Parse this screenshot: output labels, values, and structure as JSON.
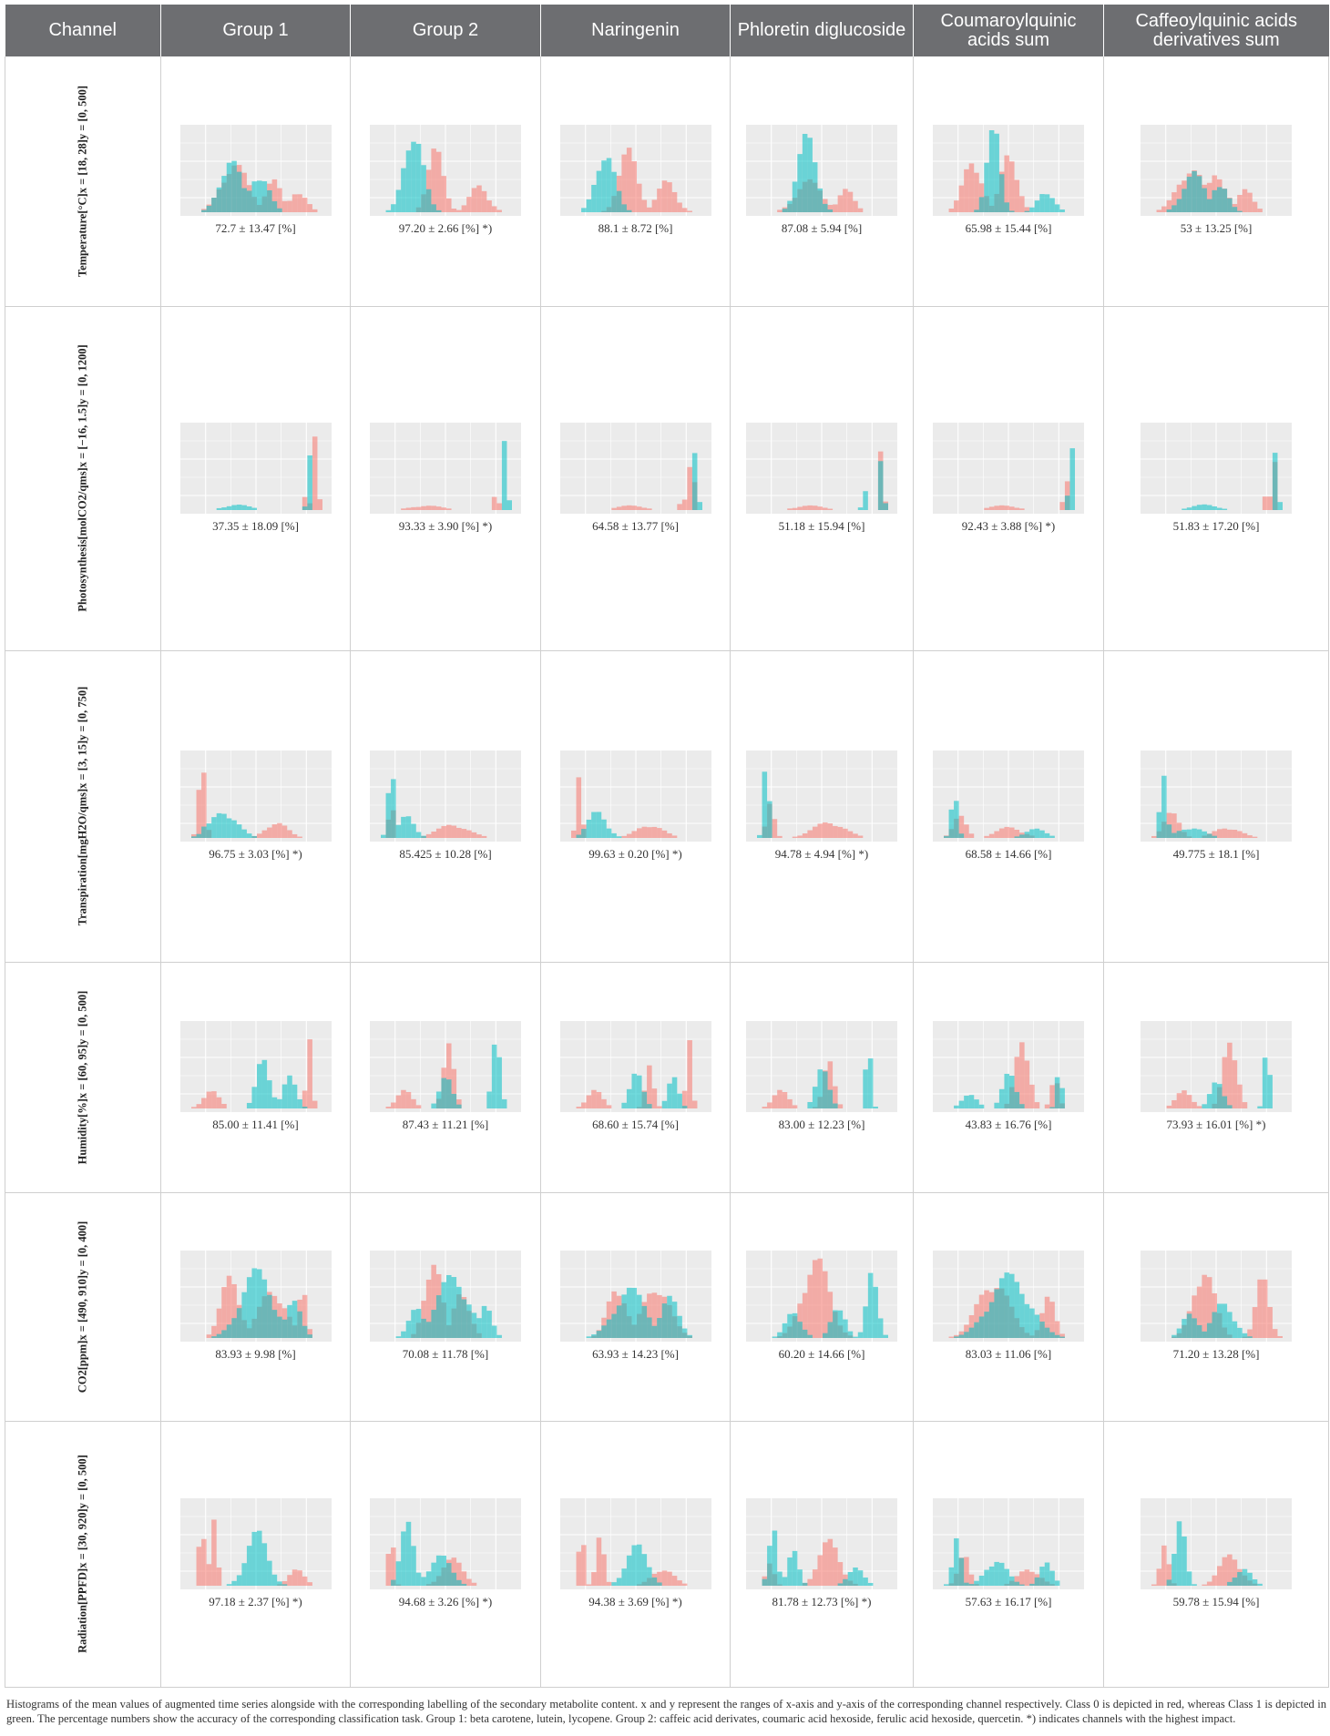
{
  "table": {
    "headers": [
      "Channel",
      "Group 1",
      "Group 2",
      "Naringenin",
      "Phloretin diglucoside",
      "Coumaroylquinic acids sum",
      "Caffeoylquinic acids derivatives sum"
    ],
    "rows": [
      {
        "channel": "Temperature[°C]x = [18, 28]y = [0, 500]",
        "accuracies": [
          "72.7 ± 13.47 [%]",
          "97.20 ± 2.66 [%] *)",
          "88.1 ± 8.72 [%]",
          "87.08 ± 5.94 [%]",
          "65.98 ± 15.44 [%]",
          "53 ± 13.25 [%]"
        ]
      },
      {
        "channel": "Photosynthesis[molCO2/qms]x = [−16, 1.5]y = [0, 1200]",
        "accuracies": [
          "37.35 ± 18.09 [%]",
          "93.33 ± 3.90 [%] *)",
          "64.58 ± 13.77 [%]",
          "51.18 ± 15.94 [%]",
          "92.43 ± 3.88 [%] *)",
          "51.83 ± 17.20 [%]"
        ]
      },
      {
        "channel": "Transpiration[mgH2O/qms]x = [3, 15]y = [0, 750]",
        "accuracies": [
          "96.75 ± 3.03 [%] *)",
          "85.425 ± 10.28 [%]",
          "99.63 ± 0.20 [%] *)",
          "94.78 ± 4.94 [%] *)",
          "68.58 ± 14.66 [%]",
          "49.775 ± 18.1 [%]"
        ]
      },
      {
        "channel": "Humidity[%]x = [60, 95]y = [0, 500]",
        "accuracies": [
          "85.00 ± 11.41 [%]",
          "87.43 ± 11.21 [%]",
          "68.60 ± 15.74 [%]",
          "83.00 ± 12.23 [%]",
          "43.83 ± 16.76 [%]",
          "73.93 ± 16.01 [%] *)"
        ]
      },
      {
        "channel": "CO2[ppm]x = [490, 910]y = [0, 400]",
        "accuracies": [
          "83.93 ± 9.98 [%]",
          "70.08 ± 11.78 [%]",
          "63.93 ± 14.23 [%]",
          "60.20 ± 14.66 [%]",
          "83.03 ± 11.06 [%]",
          "71.20 ± 13.28 [%]"
        ]
      },
      {
        "channel": "Radiation[PPFD]x = [30, 920]y = [0, 500]",
        "accuracies": [
          "97.18 ± 2.37 [%] *)",
          "94.68 ± 3.26 [%] *)",
          "94.38 ± 3.69 [%] *)",
          "81.78 ± 12.73 [%] *)",
          "57.63 ± 16.17 [%]",
          "59.78 ± 15.94 [%]"
        ]
      }
    ]
  },
  "caption": "Histograms of the mean values of augmented time series alongside with the corresponding labelling of the secondary metabolite content. x and y represent the ranges of x-axis and y-axis of the corresponding channel respectively. Class 0 is depicted in red, whereas Class 1 is depicted in green. The percentage numbers show the accuracy of the corresponding classification task. Group 1: beta carotene, lutein, lycopene. Group 2: caffeic acid derivates, coumaric acid hexoside, ferulic acid hexoside, quercetin. *) indicates channels with the highest impact.",
  "colors": {
    "header_bg": "#6d6e71",
    "class0_red": "#f8766d",
    "class1_green": "#00bfc4",
    "plot_panel": "#ebebeb"
  },
  "chart_data": {
    "type": "histogram-grid",
    "classes": [
      "Class 0",
      "Class 1"
    ],
    "shapes": [
      [
        [
          [
            [
              0.33,
              0.1,
              0.55
            ],
            [
              0.62,
              0.06,
              0.38
            ],
            [
              0.82,
              0.06,
              0.25
            ]
          ],
          [
            [
              0.3,
              0.08,
              0.6
            ],
            [
              0.52,
              0.07,
              0.45
            ]
          ]
        ],
        [
          [
            [
              0.42,
              0.06,
              0.7
            ],
            [
              0.75,
              0.07,
              0.3
            ]
          ],
          [
            [
              0.25,
              0.07,
              0.95
            ]
          ]
        ],
        [
          [
            [
              0.44,
              0.07,
              0.7
            ],
            [
              0.73,
              0.07,
              0.35
            ]
          ],
          [
            [
              0.26,
              0.07,
              0.7
            ]
          ]
        ],
        [
          [
            [
              0.4,
              0.1,
              0.35
            ],
            [
              0.68,
              0.06,
              0.25
            ]
          ],
          [
            [
              0.38,
              0.07,
              0.85
            ]
          ]
        ],
        [
          [
            [
              0.22,
              0.07,
              0.6
            ],
            [
              0.5,
              0.06,
              0.7
            ]
          ],
          [
            [
              0.38,
              0.05,
              0.95
            ],
            [
              0.78,
              0.06,
              0.25
            ]
          ]
        ],
        [
          [
            [
              0.3,
              0.1,
              0.5
            ],
            [
              0.5,
              0.07,
              0.45
            ],
            [
              0.72,
              0.06,
              0.25
            ]
          ],
          [
            [
              0.32,
              0.08,
              0.45
            ],
            [
              0.52,
              0.06,
              0.35
            ]
          ]
        ]
      ],
      [
        [
          [
            [
              0.95,
              0.015,
              0.95
            ],
            [
              0.88,
              0.015,
              0.3
            ]
          ],
          [
            [
              0.9,
              0.015,
              0.65
            ],
            [
              0.35,
              0.1,
              0.06
            ]
          ]
        ],
        [
          [
            [
              0.35,
              0.12,
              0.05
            ],
            [
              0.88,
              0.015,
              0.3
            ]
          ],
          [
            [
              0.95,
              0.015,
              0.85
            ]
          ]
        ],
        [
          [
            [
              0.45,
              0.11,
              0.05
            ],
            [
              0.92,
              0.015,
              0.95
            ],
            [
              0.85,
              0.015,
              0.25
            ]
          ],
          [
            [
              0.95,
              0.015,
              0.7
            ]
          ]
        ],
        [
          [
            [
              0.4,
              0.11,
              0.05
            ],
            [
              0.95,
              0.015,
              0.75
            ]
          ],
          [
            [
              0.95,
              0.015,
              0.6
            ],
            [
              0.82,
              0.015,
              0.3
            ]
          ]
        ],
        [
          [
            [
              0.45,
              0.11,
              0.05
            ],
            [
              0.93,
              0.015,
              0.45
            ]
          ],
          [
            [
              0.97,
              0.015,
              0.85
            ]
          ]
        ],
        [
          [
            [
              0.93,
              0.015,
              0.75
            ],
            [
              0.88,
              0.015,
              0.3
            ]
          ],
          [
            [
              0.4,
              0.1,
              0.06
            ],
            [
              0.95,
              0.015,
              0.7
            ]
          ]
        ]
      ],
      [
        [
          [
            [
              0.08,
              0.025,
              0.95
            ],
            [
              0.65,
              0.08,
              0.18
            ]
          ],
          [
            [
              0.25,
              0.1,
              0.3
            ],
            [
              0.12,
              0.04,
              0.15
            ]
          ]
        ],
        [
          [
            [
              0.08,
              0.02,
              0.45
            ],
            [
              0.55,
              0.12,
              0.15
            ]
          ],
          [
            [
              0.08,
              0.025,
              0.8
            ],
            [
              0.2,
              0.06,
              0.25
            ]
          ]
        ],
        [
          [
            [
              0.06,
              0.02,
              0.8
            ],
            [
              0.6,
              0.1,
              0.15
            ]
          ],
          [
            [
              0.2,
              0.07,
              0.3
            ]
          ]
        ],
        [
          [
            [
              0.1,
              0.03,
              0.4
            ],
            [
              0.55,
              0.12,
              0.18
            ]
          ],
          [
            [
              0.07,
              0.02,
              0.95
            ]
          ]
        ],
        [
          [
            [
              0.12,
              0.05,
              0.25
            ],
            [
              0.5,
              0.1,
              0.12
            ]
          ],
          [
            [
              0.08,
              0.025,
              0.5
            ],
            [
              0.7,
              0.08,
              0.1
            ]
          ]
        ],
        [
          [
            [
              0.15,
              0.06,
              0.28
            ],
            [
              0.58,
              0.1,
              0.12
            ]
          ],
          [
            [
              0.09,
              0.025,
              0.7
            ],
            [
              0.3,
              0.1,
              0.12
            ]
          ]
        ]
      ],
      [
        [
          [
            [
              0.15,
              0.06,
              0.2
            ],
            [
              0.9,
              0.02,
              0.95
            ]
          ],
          [
            [
              0.55,
              0.05,
              0.6
            ],
            [
              0.75,
              0.05,
              0.35
            ]
          ]
        ],
        [
          [
            [
              0.18,
              0.06,
              0.2
            ],
            [
              0.52,
              0.04,
              0.7
            ]
          ],
          [
            [
              0.5,
              0.05,
              0.35
            ],
            [
              0.88,
              0.03,
              0.95
            ]
          ]
        ],
        [
          [
            [
              0.18,
              0.06,
              0.2
            ],
            [
              0.6,
              0.03,
              0.55
            ],
            [
              0.9,
              0.02,
              0.95
            ]
          ],
          [
            [
              0.5,
              0.05,
              0.4
            ],
            [
              0.78,
              0.04,
              0.35
            ]
          ]
        ],
        [
          [
            [
              0.18,
              0.06,
              0.2
            ],
            [
              0.55,
              0.04,
              0.55
            ]
          ],
          [
            [
              0.5,
              0.05,
              0.45
            ],
            [
              0.85,
              0.02,
              0.9
            ]
          ]
        ],
        [
          [
            [
              0.6,
              0.05,
              0.85
            ],
            [
              0.85,
              0.03,
              0.35
            ]
          ],
          [
            [
              0.2,
              0.06,
              0.15
            ],
            [
              0.5,
              0.05,
              0.4
            ],
            [
              0.88,
              0.02,
              0.55
            ]
          ]
        ],
        [
          [
            [
              0.25,
              0.06,
              0.2
            ],
            [
              0.6,
              0.05,
              0.85
            ]
          ],
          [
            [
              0.5,
              0.05,
              0.3
            ],
            [
              0.88,
              0.02,
              0.9
            ]
          ]
        ]
      ],
      [
        [
          [
            [
              0.3,
              0.07,
              0.7
            ],
            [
              0.62,
              0.1,
              0.55
            ],
            [
              0.85,
              0.03,
              0.55
            ]
          ],
          [
            [
              0.5,
              0.12,
              0.75
            ],
            [
              0.78,
              0.06,
              0.4
            ]
          ]
        ],
        [
          [
            [
              0.4,
              0.06,
              0.95
            ],
            [
              0.62,
              0.06,
              0.55
            ]
          ],
          [
            [
              0.55,
              0.12,
              0.7
            ],
            [
              0.28,
              0.06,
              0.35
            ],
            [
              0.8,
              0.05,
              0.35
            ]
          ]
        ],
        [
          [
            [
              0.35,
              0.07,
              0.6
            ],
            [
              0.65,
              0.1,
              0.6
            ]
          ],
          [
            [
              0.45,
              0.12,
              0.55
            ],
            [
              0.75,
              0.07,
              0.45
            ]
          ]
        ],
        [
          [
            [
              0.45,
              0.1,
              0.9
            ]
          ],
          [
            [
              0.28,
              0.06,
              0.3
            ],
            [
              0.88,
              0.04,
              0.85
            ],
            [
              0.62,
              0.05,
              0.4
            ]
          ]
        ],
        [
          [
            [
              0.38,
              0.12,
              0.65
            ],
            [
              0.8,
              0.05,
              0.45
            ]
          ],
          [
            [
              0.5,
              0.15,
              0.7
            ]
          ]
        ],
        [
          [
            [
              0.4,
              0.08,
              0.8
            ],
            [
              0.85,
              0.05,
              0.7
            ]
          ],
          [
            [
              0.3,
              0.06,
              0.3
            ],
            [
              0.55,
              0.08,
              0.4
            ]
          ]
        ]
      ],
      [
        [
          [
            [
              0.08,
              0.02,
              0.85
            ],
            [
              0.17,
              0.025,
              0.8
            ],
            [
              0.8,
              0.06,
              0.18
            ]
          ],
          [
            [
              0.5,
              0.08,
              0.6
            ]
          ]
        ],
        [
          [
            [
              0.08,
              0.02,
              0.7
            ],
            [
              0.55,
              0.08,
              0.3
            ]
          ],
          [
            [
              0.2,
              0.05,
              0.7
            ],
            [
              0.45,
              0.08,
              0.35
            ]
          ]
        ],
        [
          [
            [
              0.08,
              0.02,
              0.75
            ],
            [
              0.22,
              0.03,
              0.55
            ],
            [
              0.7,
              0.08,
              0.2
            ]
          ],
          [
            [
              0.5,
              0.08,
              0.45
            ]
          ]
        ],
        [
          [
            [
              0.55,
              0.08,
              0.5
            ],
            [
              0.1,
              0.03,
              0.3
            ]
          ],
          [
            [
              0.12,
              0.03,
              0.75
            ],
            [
              0.28,
              0.04,
              0.4
            ],
            [
              0.75,
              0.06,
              0.2
            ]
          ]
        ],
        [
          [
            [
              0.15,
              0.04,
              0.4
            ],
            [
              0.65,
              0.08,
              0.2
            ]
          ],
          [
            [
              0.1,
              0.03,
              0.65
            ],
            [
              0.4,
              0.08,
              0.3
            ],
            [
              0.78,
              0.05,
              0.25
            ]
          ]
        ],
        [
          [
            [
              0.1,
              0.03,
              0.55
            ],
            [
              0.6,
              0.08,
              0.35
            ]
          ],
          [
            [
              0.22,
              0.04,
              0.7
            ],
            [
              0.7,
              0.06,
              0.2
            ]
          ]
        ]
      ]
    ]
  }
}
